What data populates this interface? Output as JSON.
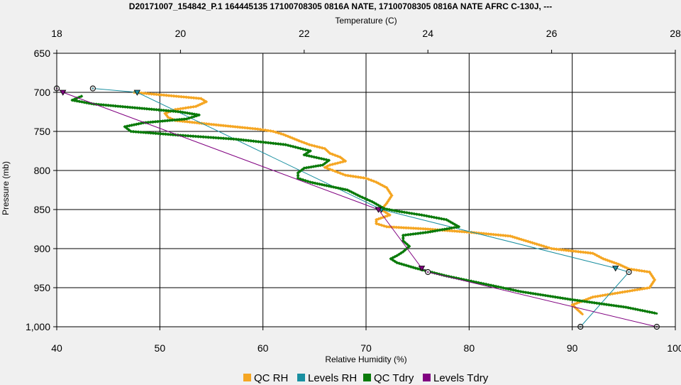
{
  "chart_data": {
    "type": "line",
    "title": "D20171007_154842_P.1 164445135 17100708305 0816A NATE, 17100708305 0816A NATE AFRC C-130J, ---",
    "xlabel": "Relative Humidity (%)",
    "x2label": "Temperature (C)",
    "ylabel": "Pressure (mb)",
    "xlim": [
      40,
      100
    ],
    "x2lim": [
      18,
      28
    ],
    "ylim": [
      650,
      1000
    ],
    "y_inverted": true,
    "grid": true,
    "x_ticks": [
      "40",
      "50",
      "60",
      "70",
      "80",
      "90",
      "100"
    ],
    "x2_ticks": [
      "18",
      "20",
      "22",
      "24",
      "26",
      "28"
    ],
    "y_ticks": [
      "650",
      "700",
      "750",
      "800",
      "850",
      "900",
      "950",
      "1,000"
    ],
    "legend_position": "bottom",
    "series": [
      {
        "name": "QC RH",
        "axis": "bottom",
        "color": "#f5a623",
        "marker": "small-diamond",
        "points": [
          [
            47.5,
            700
          ],
          [
            54.0,
            708
          ],
          [
            54.5,
            712
          ],
          [
            53.5,
            718
          ],
          [
            51.5,
            722
          ],
          [
            50.5,
            727
          ],
          [
            50.8,
            732
          ],
          [
            51.5,
            736
          ],
          [
            55.0,
            741
          ],
          [
            58.0,
            745
          ],
          [
            59.5,
            747
          ],
          [
            61.0,
            750
          ],
          [
            62.0,
            754
          ],
          [
            63.5,
            762
          ],
          [
            64.5,
            767
          ],
          [
            66.0,
            772
          ],
          [
            66.5,
            778
          ],
          [
            67.5,
            783
          ],
          [
            68.0,
            788
          ],
          [
            66.5,
            793
          ],
          [
            66.0,
            796
          ],
          [
            67.0,
            801
          ],
          [
            68.0,
            806
          ],
          [
            70.0,
            810
          ],
          [
            71.0,
            815
          ],
          [
            72.0,
            822
          ],
          [
            72.5,
            832
          ],
          [
            72.0,
            842
          ],
          [
            71.5,
            850
          ],
          [
            72.3,
            857
          ],
          [
            71.0,
            863
          ],
          [
            71.0,
            868
          ],
          [
            72.0,
            872
          ],
          [
            76.0,
            875
          ],
          [
            80.0,
            879
          ],
          [
            84.0,
            884
          ],
          [
            85.5,
            890
          ],
          [
            87.0,
            896
          ],
          [
            88.0,
            900
          ],
          [
            92.0,
            906
          ],
          [
            93.0,
            913
          ],
          [
            94.5,
            920
          ],
          [
            95.5,
            926
          ],
          [
            97.5,
            930
          ],
          [
            98.0,
            940
          ],
          [
            97.5,
            950
          ],
          [
            92.0,
            962
          ],
          [
            90.0,
            972
          ],
          [
            90.5,
            978
          ],
          [
            91.0,
            984
          ]
        ]
      },
      {
        "name": "Levels RH",
        "axis": "bottom",
        "color": "#1a8fa0",
        "marker": "circle-triangle",
        "points": [
          [
            43.5,
            695
          ],
          [
            47.8,
            700
          ],
          [
            71.5,
            850
          ],
          [
            94.2,
            925
          ],
          [
            95.5,
            930
          ],
          [
            90.8,
            1000
          ]
        ]
      },
      {
        "name": "QC Tdry",
        "axis": "top",
        "color": "#0a7a0a",
        "marker": "small-diamond",
        "points": [
          [
            18.4,
            705
          ],
          [
            18.25,
            710
          ],
          [
            18.6,
            715
          ],
          [
            19.3,
            720
          ],
          [
            20.0,
            725
          ],
          [
            20.3,
            729
          ],
          [
            20.1,
            734
          ],
          [
            19.4,
            739
          ],
          [
            19.1,
            744
          ],
          [
            19.2,
            750
          ],
          [
            20.0,
            755
          ],
          [
            20.9,
            760
          ],
          [
            21.7,
            767
          ],
          [
            22.1,
            775
          ],
          [
            22.0,
            780
          ],
          [
            22.4,
            787
          ],
          [
            22.3,
            793
          ],
          [
            22.0,
            797
          ],
          [
            21.9,
            803
          ],
          [
            21.9,
            810
          ],
          [
            22.1,
            815
          ],
          [
            22.4,
            820
          ],
          [
            22.7,
            825
          ],
          [
            22.9,
            833
          ],
          [
            23.1,
            840
          ],
          [
            23.3,
            849
          ],
          [
            23.5,
            852
          ],
          [
            23.9,
            857
          ],
          [
            24.3,
            863
          ],
          [
            24.5,
            872
          ],
          [
            24.0,
            879
          ],
          [
            23.6,
            883
          ],
          [
            23.6,
            890
          ],
          [
            23.7,
            897
          ],
          [
            23.6,
            904
          ],
          [
            23.5,
            909
          ],
          [
            23.4,
            913
          ],
          [
            23.5,
            918
          ],
          [
            23.8,
            925
          ],
          [
            24.3,
            935
          ],
          [
            24.9,
            945
          ],
          [
            25.5,
            955
          ],
          [
            26.3,
            965
          ],
          [
            27.2,
            975
          ],
          [
            27.7,
            983
          ]
        ]
      },
      {
        "name": "Levels Tdry",
        "axis": "top",
        "color": "#800080",
        "marker": "circle-triangle",
        "points": [
          [
            18.0,
            695
          ],
          [
            18.1,
            700
          ],
          [
            23.2,
            850
          ],
          [
            23.9,
            925
          ],
          [
            24.0,
            930
          ],
          [
            27.7,
            1000
          ]
        ]
      }
    ]
  }
}
